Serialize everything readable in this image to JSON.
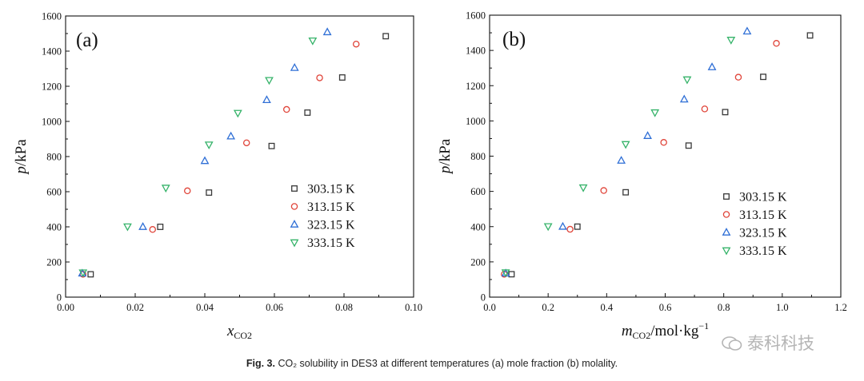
{
  "caption": {
    "fig_label": "Fig. 3.",
    "text": " CO₂ solubility in DES3 at different temperatures (a) mole fraction (b) molality."
  },
  "watermark": {
    "text": "泰科科技"
  },
  "chart_data": [
    {
      "type": "scatter",
      "panel_label": "(a)",
      "xlabel": "x",
      "xlabel_sub": "CO2",
      "ylabel": "p/kPa",
      "xlim": [
        0.0,
        0.1
      ],
      "ylim": [
        0,
        1600
      ],
      "xticks": [
        0.0,
        0.02,
        0.04,
        0.06,
        0.08,
        0.1
      ],
      "xtick_labels": [
        "0.00",
        "0.02",
        "0.04",
        "0.06",
        "0.08",
        "0.10"
      ],
      "yticks": [
        0,
        200,
        400,
        600,
        800,
        1000,
        1200,
        1400,
        1600
      ],
      "ytick_labels": [
        "0",
        "200",
        "400",
        "600",
        "800",
        "1000",
        "1200",
        "1400",
        "1600"
      ],
      "legend_position": "center-right",
      "series": [
        {
          "name": "303.15 K",
          "marker": "square",
          "color": "#3a3a3a",
          "x": [
            0.0072,
            0.0272,
            0.0412,
            0.0592,
            0.0695,
            0.0795,
            0.092
          ],
          "y": [
            130,
            400,
            595,
            860,
            1050,
            1250,
            1485
          ]
        },
        {
          "name": "313.15 K",
          "marker": "circle",
          "color": "#e0453a",
          "x": [
            0.005,
            0.025,
            0.035,
            0.052,
            0.0635,
            0.073,
            0.0835
          ],
          "y": [
            130,
            385,
            605,
            878,
            1068,
            1248,
            1440
          ]
        },
        {
          "name": "323.15 K",
          "marker": "triangle-up",
          "color": "#2f6fd6",
          "x": [
            0.0048,
            0.0222,
            0.04,
            0.0475,
            0.0578,
            0.0658,
            0.0752
          ],
          "y": [
            135,
            400,
            775,
            915,
            1122,
            1305,
            1508
          ]
        },
        {
          "name": "333.15 K",
          "marker": "triangle-down",
          "color": "#36b36a",
          "x": [
            0.005,
            0.0178,
            0.0288,
            0.0412,
            0.0495,
            0.0585,
            0.071
          ],
          "y": [
            140,
            402,
            622,
            868,
            1048,
            1235,
            1460
          ]
        }
      ]
    },
    {
      "type": "scatter",
      "panel_label": "(b)",
      "xlabel": "m",
      "xlabel_sub": "CO2",
      "xlabel_rest": "/mol·kg",
      "xlabel_sup": "−1",
      "ylabel": "p/kPa",
      "xlim": [
        0.0,
        1.2
      ],
      "ylim": [
        0,
        1600
      ],
      "xticks": [
        0.0,
        0.2,
        0.4,
        0.6,
        0.8,
        1.0,
        1.2
      ],
      "xtick_labels": [
        "0.0",
        "0.2",
        "0.4",
        "0.6",
        "0.8",
        "1.0",
        "1.2"
      ],
      "yticks": [
        0,
        200,
        400,
        600,
        800,
        1000,
        1200,
        1400,
        1600
      ],
      "ytick_labels": [
        "0",
        "200",
        "400",
        "600",
        "800",
        "1000",
        "1200",
        "1400",
        "1600"
      ],
      "legend_position": "bottom-right",
      "series": [
        {
          "name": "303.15 K",
          "marker": "square",
          "color": "#3a3a3a",
          "x": [
            0.075,
            0.3,
            0.465,
            0.68,
            0.805,
            0.935,
            1.095
          ],
          "y": [
            130,
            400,
            595,
            860,
            1050,
            1250,
            1485
          ]
        },
        {
          "name": "313.15 K",
          "marker": "circle",
          "color": "#e0453a",
          "x": [
            0.05,
            0.275,
            0.39,
            0.595,
            0.735,
            0.85,
            0.98
          ],
          "y": [
            130,
            385,
            605,
            878,
            1068,
            1248,
            1440
          ]
        },
        {
          "name": "323.15 K",
          "marker": "triangle-up",
          "color": "#2f6fd6",
          "x": [
            0.055,
            0.25,
            0.45,
            0.54,
            0.665,
            0.76,
            0.88
          ],
          "y": [
            135,
            400,
            775,
            915,
            1122,
            1305,
            1508
          ]
        },
        {
          "name": "333.15 K",
          "marker": "triangle-down",
          "color": "#36b36a",
          "x": [
            0.055,
            0.2,
            0.32,
            0.465,
            0.565,
            0.675,
            0.825
          ],
          "y": [
            140,
            402,
            622,
            868,
            1048,
            1235,
            1460
          ]
        }
      ]
    }
  ]
}
